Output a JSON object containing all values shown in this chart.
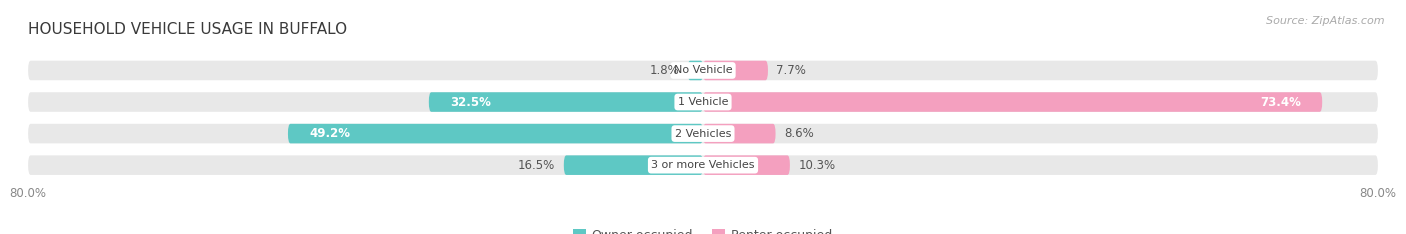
{
  "title": "HOUSEHOLD VEHICLE USAGE IN BUFFALO",
  "source": "Source: ZipAtlas.com",
  "categories": [
    "No Vehicle",
    "1 Vehicle",
    "2 Vehicles",
    "3 or more Vehicles"
  ],
  "owner_values": [
    1.8,
    32.5,
    49.2,
    16.5
  ],
  "renter_values": [
    7.7,
    73.4,
    8.6,
    10.3
  ],
  "owner_color": "#5ec8c4",
  "renter_color": "#f4a0bf",
  "owner_color_dark": "#40b8b4",
  "renter_color_dark": "#e8608a",
  "bar_bg_color": "#e8e8e8",
  "bar_height": 0.62,
  "x_min": -80.0,
  "x_max": 80.0,
  "title_fontsize": 11,
  "source_fontsize": 8,
  "label_fontsize": 8.5,
  "category_fontsize": 8,
  "legend_fontsize": 9,
  "tick_fontsize": 8.5
}
